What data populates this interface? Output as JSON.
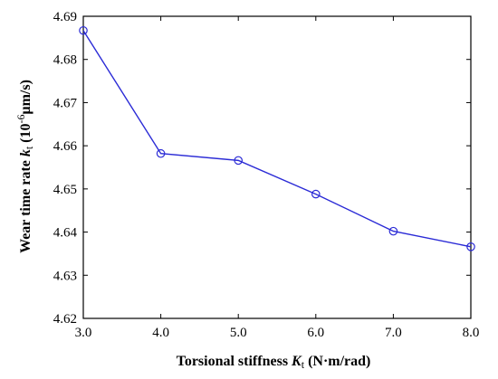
{
  "chart_data": {
    "type": "line",
    "title": "",
    "xlabel": {
      "prefix": "Torsional stiffness ",
      "symbol": "K",
      "subscript": "t",
      "unit": " (N·m/rad)"
    },
    "ylabel": {
      "prefix": "Wear time rate ",
      "symbol": "k",
      "subscript": "t",
      "unit_open": " (10",
      "unit_exp": "-6",
      "unit_close": "μm/s)"
    },
    "xlim": [
      3.0,
      8.0
    ],
    "ylim": [
      4.62,
      4.69
    ],
    "xticks": [
      3.0,
      4.0,
      5.0,
      6.0,
      7.0,
      8.0
    ],
    "xtick_labels": [
      "3.0",
      "4.0",
      "5.0",
      "6.0",
      "7.0",
      "8.0"
    ],
    "yticks": [
      4.62,
      4.63,
      4.64,
      4.65,
      4.66,
      4.67,
      4.68,
      4.69
    ],
    "ytick_labels": [
      "4.62",
      "4.63",
      "4.64",
      "4.65",
      "4.66",
      "4.67",
      "4.68",
      "4.69"
    ],
    "grid": false,
    "series": [
      {
        "color": "#2b2bd6",
        "marker": "open-circle",
        "x": [
          3.0,
          4.0,
          5.0,
          6.0,
          7.0,
          8.0
        ],
        "y": [
          4.6867,
          4.6582,
          4.6566,
          4.6488,
          4.6402,
          4.6366
        ]
      }
    ]
  }
}
